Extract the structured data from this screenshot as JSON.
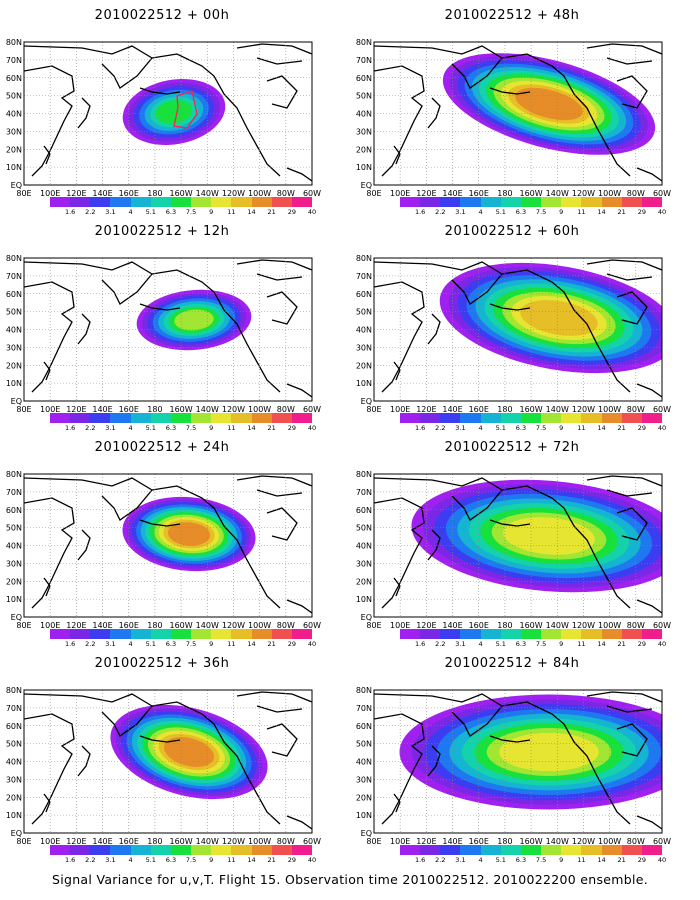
{
  "panels": [
    {
      "title": "2010022512 + 00h",
      "col": 0,
      "row": 0,
      "blobs": [
        {
          "cx": 150,
          "cy": 70,
          "rx": 45,
          "ry": 28,
          "lvl": 7,
          "rot": -10
        }
      ],
      "marker": true
    },
    {
      "title": "2010022512 + 12h",
      "col": 0,
      "row": 1,
      "blobs": [
        {
          "cx": 170,
          "cy": 62,
          "rx": 50,
          "ry": 26,
          "lvl": 8,
          "rot": -5
        }
      ]
    },
    {
      "title": "2010022512 + 24h",
      "col": 0,
      "row": 2,
      "blobs": [
        {
          "cx": 165,
          "cy": 60,
          "rx": 58,
          "ry": 32,
          "lvl": 11,
          "rot": 5
        }
      ]
    },
    {
      "title": "2010022512 + 36h",
      "col": 0,
      "row": 3,
      "blobs": [
        {
          "cx": 165,
          "cy": 62,
          "rx": 70,
          "ry": 38,
          "lvl": 11,
          "rot": 15
        }
      ]
    },
    {
      "title": "2010022512 + 48h",
      "col": 1,
      "row": 0,
      "blobs": [
        {
          "cx": 175,
          "cy": 62,
          "rx": 95,
          "ry": 38,
          "lvl": 11,
          "rot": 15
        }
      ]
    },
    {
      "title": "2010022512 + 60h",
      "col": 1,
      "row": 1,
      "blobs": [
        {
          "cx": 185,
          "cy": 60,
          "rx": 105,
          "ry": 45,
          "lvl": 10,
          "rot": 10
        }
      ]
    },
    {
      "title": "2010022512 + 72h",
      "col": 1,
      "row": 2,
      "blobs": [
        {
          "cx": 175,
          "cy": 62,
          "rx": 120,
          "ry": 48,
          "lvl": 9,
          "rot": 5
        }
      ]
    },
    {
      "title": "2010022512 + 84h",
      "col": 1,
      "row": 3,
      "blobs": [
        {
          "cx": 175,
          "cy": 62,
          "rx": 130,
          "ry": 50,
          "lvl": 9,
          "rot": 0
        }
      ]
    }
  ],
  "lon_labels": [
    "80E",
    "100E",
    "120E",
    "140E",
    "160E",
    "180",
    "160W",
    "140W",
    "120W",
    "100W",
    "80W",
    "60W"
  ],
  "lat_labels": [
    "EQ",
    "10N",
    "20N",
    "30N",
    "40N",
    "50N",
    "60N",
    "70N",
    "80N"
  ],
  "colorbar": {
    "colors": [
      "#a020f0",
      "#7a28e6",
      "#3c3cf0",
      "#1e78f0",
      "#14b4d2",
      "#14d2aa",
      "#18e03c",
      "#a0e632",
      "#e6e632",
      "#e6be28",
      "#e68c28",
      "#f05050",
      "#f01e8c"
    ],
    "labels": [
      "1.6",
      "2.2",
      "3.1",
      "4",
      "5.1",
      "6.3",
      "7.5",
      "9",
      "11",
      "14",
      "21",
      "29",
      "40"
    ]
  },
  "caption": "Signal Variance for u,v,T. Flight 15. Observation time 2010022512. 2010022200 ensemble."
}
